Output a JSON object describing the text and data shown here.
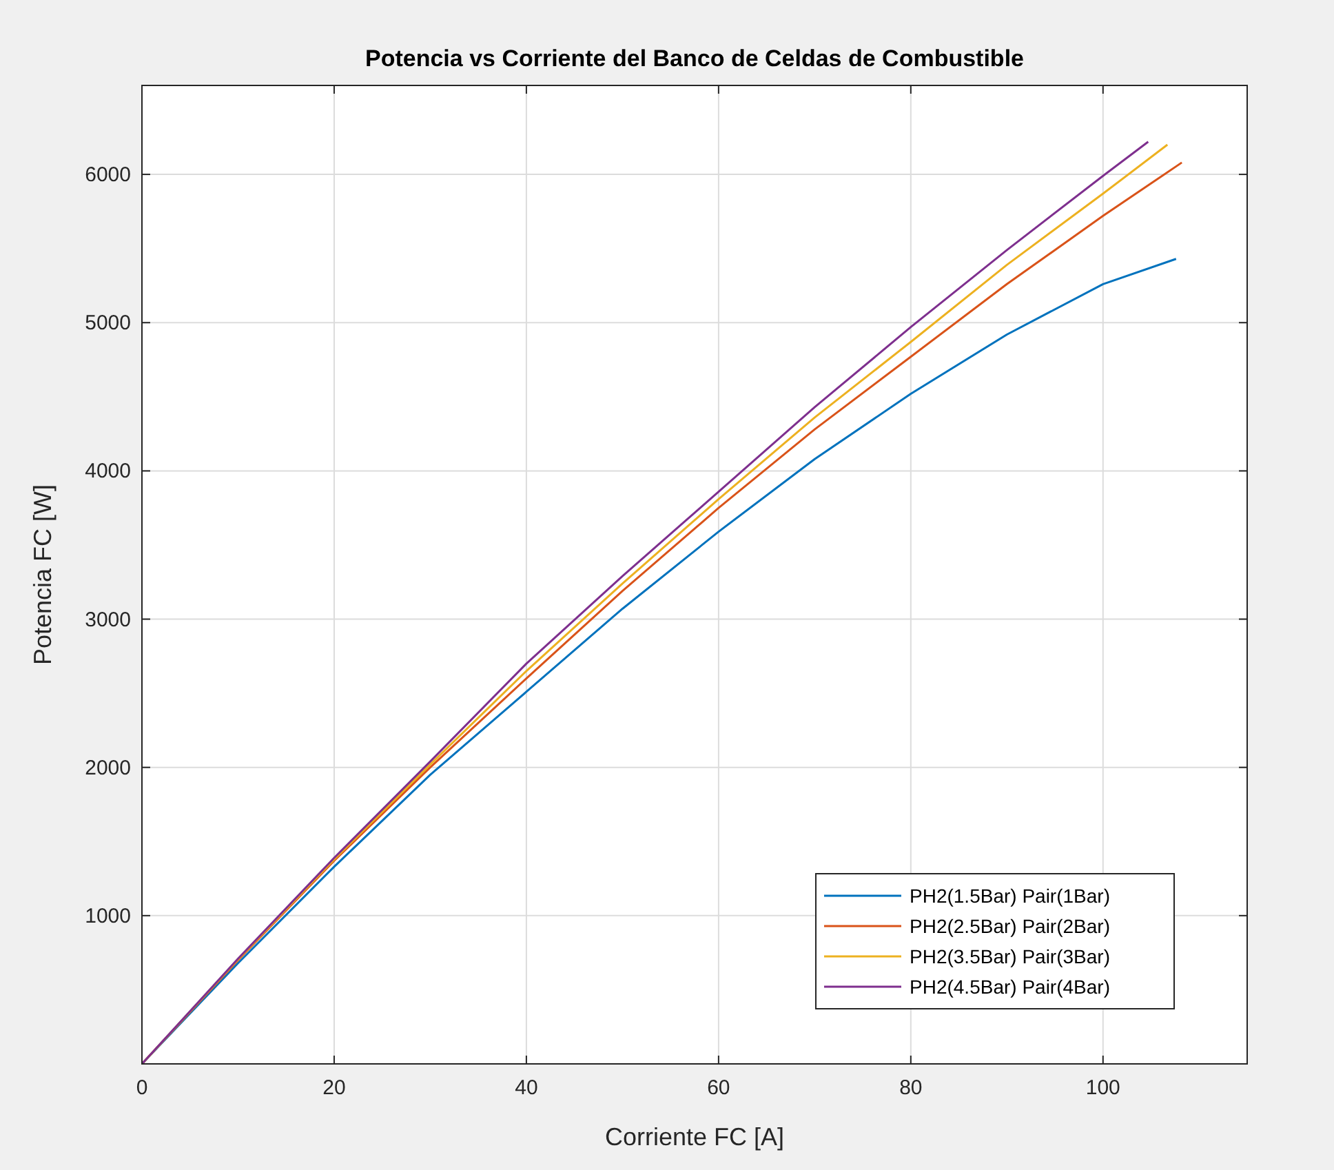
{
  "chart_data": {
    "type": "line",
    "title": "Potencia vs Corriente del Banco de Celdas de Combustible",
    "xlabel": "Corriente FC [A]",
    "ylabel": "Potencia FC [W]",
    "xlim": [
      0,
      115
    ],
    "xticks": [
      0,
      20,
      40,
      60,
      80,
      100
    ],
    "ylim": [
      0,
      6600
    ],
    "yticks": [
      1000,
      2000,
      3000,
      4000,
      5000,
      6000
    ],
    "grid": true,
    "legend": "bottom right",
    "series": [
      {
        "name": "PH2(1.5Bar) Pair(1Bar)",
        "color": "#0072bd",
        "x": [
          0,
          10,
          20,
          30,
          40,
          50,
          60,
          70,
          80,
          90,
          100,
          107.6
        ],
        "values": [
          0,
          680,
          1330,
          1950,
          2510,
          3070,
          3590,
          4080,
          4520,
          4920,
          5260,
          5430
        ]
      },
      {
        "name": "PH2(2.5Bar) Pair(2Bar)",
        "color": "#d95319",
        "x": [
          0,
          10,
          20,
          30,
          40,
          50,
          60,
          70,
          80,
          90,
          100,
          108.2
        ],
        "values": [
          0,
          700,
          1370,
          2000,
          2600,
          3190,
          3750,
          4280,
          4770,
          5260,
          5720,
          6080
        ]
      },
      {
        "name": "PH2(3.5Bar) Pair(3Bar)",
        "color": "#edb120",
        "x": [
          0,
          10,
          20,
          30,
          40,
          50,
          60,
          70,
          80,
          90,
          100,
          106.7
        ],
        "values": [
          0,
          705,
          1380,
          2020,
          2650,
          3240,
          3810,
          4360,
          4870,
          5390,
          5870,
          6200
        ]
      },
      {
        "name": "PH2(4.5Bar) Pair(4Bar)",
        "color": "#7e2f8e",
        "x": [
          0,
          10,
          20,
          30,
          40,
          50,
          60,
          70,
          80,
          90,
          100,
          104.7
        ],
        "values": [
          0,
          710,
          1390,
          2040,
          2700,
          3290,
          3860,
          4430,
          4970,
          5490,
          5990,
          6220
        ]
      }
    ]
  }
}
